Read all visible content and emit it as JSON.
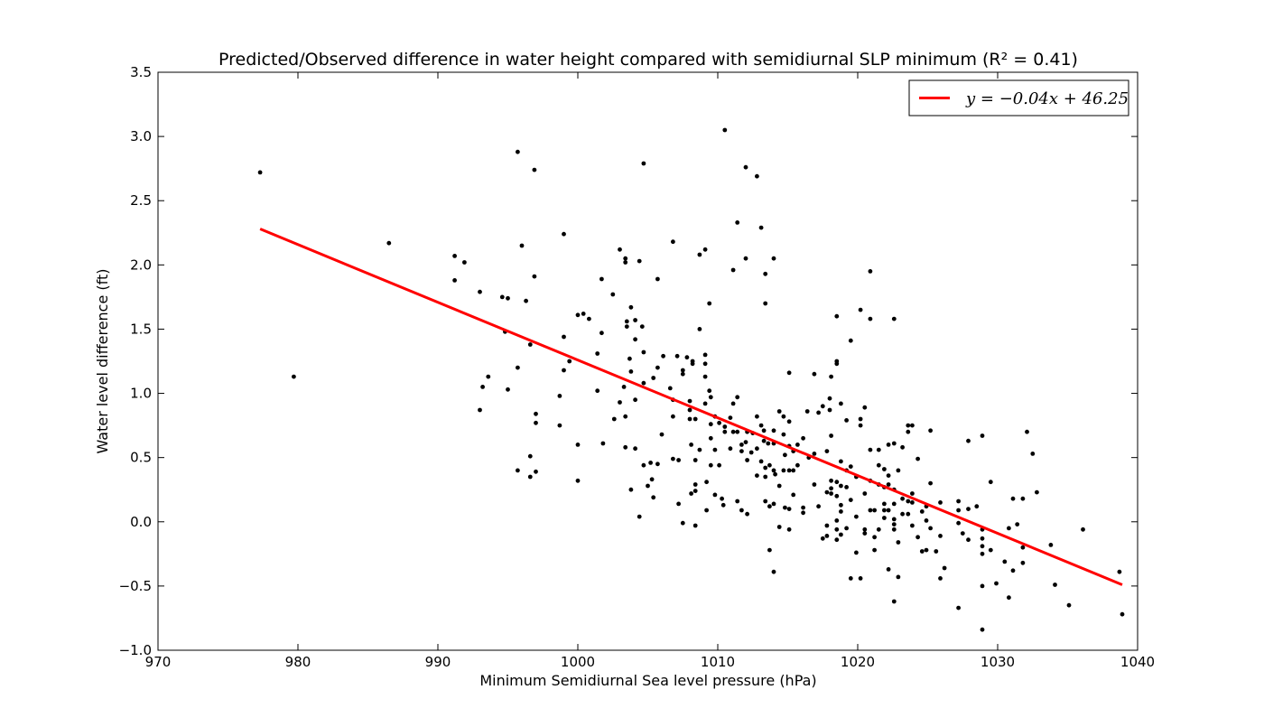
{
  "chart_data": {
    "type": "scatter",
    "title": "Predicted/Observed difference in water height compared with semidiurnal SLP minimum (R² = 0.41)",
    "xlabel": "Minimum Semidiurnal Sea level pressure (hPa)",
    "ylabel": "Water level difference (ft)",
    "xlim": [
      970,
      1040
    ],
    "ylim": [
      -1.0,
      3.5
    ],
    "xticks": [
      970,
      980,
      990,
      1000,
      1010,
      1020,
      1030,
      1040
    ],
    "yticks": [
      -1.0,
      -0.5,
      0.0,
      0.5,
      1.0,
      1.5,
      2.0,
      2.5,
      3.0,
      3.5
    ],
    "xtick_labels": [
      "970",
      "980",
      "990",
      "1000",
      "1010",
      "1020",
      "1030",
      "1040"
    ],
    "ytick_labels": [
      "−1.0",
      "−0.5",
      "0.0",
      "0.5",
      "1.0",
      "1.5",
      "2.0",
      "2.5",
      "3.0",
      "3.5"
    ],
    "grid": false,
    "legend_placement": "top-right",
    "points_color": "#000000",
    "fit_color": "#ff0000",
    "fit_line": {
      "label": "y = −0.04x + 46.25",
      "x": [
        977.3,
        1038.9
      ],
      "y": [
        2.28,
        -0.49
      ]
    },
    "points": [
      [
        977.3,
        2.72
      ],
      [
        979.7,
        1.13
      ],
      [
        986.5,
        2.17
      ],
      [
        991.2,
        2.07
      ],
      [
        991.2,
        1.88
      ],
      [
        991.9,
        2.02
      ],
      [
        993.0,
        1.79
      ],
      [
        993.0,
        0.87
      ],
      [
        993.2,
        1.05
      ],
      [
        993.6,
        1.13
      ],
      [
        994.6,
        1.75
      ],
      [
        994.8,
        1.48
      ],
      [
        995.0,
        1.74
      ],
      [
        995.0,
        1.03
      ],
      [
        995.7,
        0.4
      ],
      [
        995.7,
        1.2
      ],
      [
        995.7,
        2.88
      ],
      [
        996.0,
        2.15
      ],
      [
        996.3,
        1.72
      ],
      [
        996.6,
        1.38
      ],
      [
        996.6,
        0.51
      ],
      [
        996.6,
        0.35
      ],
      [
        996.9,
        2.74
      ],
      [
        996.9,
        1.91
      ],
      [
        997.0,
        0.84
      ],
      [
        997.0,
        0.77
      ],
      [
        997.0,
        0.39
      ],
      [
        998.7,
        0.98
      ],
      [
        998.7,
        0.75
      ],
      [
        999.0,
        2.24
      ],
      [
        999.0,
        1.44
      ],
      [
        999.0,
        1.18
      ],
      [
        999.4,
        1.25
      ],
      [
        1000.0,
        1.61
      ],
      [
        1000.0,
        0.6
      ],
      [
        1000.0,
        0.32
      ],
      [
        1000.4,
        1.62
      ],
      [
        1000.8,
        1.58
      ],
      [
        1001.4,
        1.31
      ],
      [
        1001.4,
        1.02
      ],
      [
        1001.7,
        1.89
      ],
      [
        1001.7,
        1.47
      ],
      [
        1001.8,
        0.61
      ],
      [
        1002.5,
        1.77
      ],
      [
        1002.6,
        0.8
      ],
      [
        1003.0,
        2.12
      ],
      [
        1003.0,
        0.93
      ],
      [
        1003.3,
        1.05
      ],
      [
        1003.4,
        2.05
      ],
      [
        1003.4,
        2.02
      ],
      [
        1003.4,
        0.82
      ],
      [
        1003.4,
        0.58
      ],
      [
        1003.5,
        1.56
      ],
      [
        1003.5,
        1.52
      ],
      [
        1003.7,
        1.27
      ],
      [
        1003.8,
        1.67
      ],
      [
        1003.8,
        1.17
      ],
      [
        1003.8,
        0.25
      ],
      [
        1004.1,
        1.57
      ],
      [
        1004.1,
        1.42
      ],
      [
        1004.1,
        0.95
      ],
      [
        1004.1,
        0.57
      ],
      [
        1004.4,
        2.03
      ],
      [
        1004.4,
        0.04
      ],
      [
        1004.6,
        1.52
      ],
      [
        1004.7,
        2.79
      ],
      [
        1004.7,
        1.32
      ],
      [
        1004.7,
        1.08
      ],
      [
        1004.7,
        0.44
      ],
      [
        1005.0,
        0.28
      ],
      [
        1005.2,
        0.46
      ],
      [
        1005.3,
        0.33
      ],
      [
        1005.4,
        1.12
      ],
      [
        1005.4,
        0.19
      ],
      [
        1005.7,
        1.89
      ],
      [
        1005.7,
        1.2
      ],
      [
        1005.7,
        0.45
      ],
      [
        1006.0,
        0.68
      ],
      [
        1006.1,
        1.29
      ],
      [
        1006.6,
        1.04
      ],
      [
        1006.8,
        2.18
      ],
      [
        1006.8,
        0.95
      ],
      [
        1006.8,
        0.82
      ],
      [
        1006.8,
        0.49
      ],
      [
        1007.1,
        1.29
      ],
      [
        1007.2,
        0.48
      ],
      [
        1007.2,
        0.14
      ],
      [
        1007.5,
        1.18
      ],
      [
        1007.5,
        1.15
      ],
      [
        1007.5,
        -0.01
      ],
      [
        1007.8,
        1.28
      ],
      [
        1008.0,
        0.94
      ],
      [
        1008.0,
        0.87
      ],
      [
        1008.0,
        0.8
      ],
      [
        1008.1,
        0.6
      ],
      [
        1008.1,
        0.22
      ],
      [
        1008.2,
        1.25
      ],
      [
        1008.2,
        1.23
      ],
      [
        1008.4,
        0.8
      ],
      [
        1008.4,
        0.48
      ],
      [
        1008.4,
        0.29
      ],
      [
        1008.4,
        0.24
      ],
      [
        1008.4,
        -0.03
      ],
      [
        1008.7,
        2.08
      ],
      [
        1008.7,
        1.5
      ],
      [
        1008.7,
        0.56
      ],
      [
        1009.1,
        2.12
      ],
      [
        1009.1,
        1.3
      ],
      [
        1009.1,
        1.23
      ],
      [
        1009.1,
        1.13
      ],
      [
        1009.1,
        0.92
      ],
      [
        1009.2,
        0.31
      ],
      [
        1009.2,
        0.09
      ],
      [
        1009.4,
        1.7
      ],
      [
        1009.4,
        1.02
      ],
      [
        1009.5,
        0.97
      ],
      [
        1009.5,
        0.76
      ],
      [
        1009.5,
        0.65
      ],
      [
        1009.5,
        0.44
      ],
      [
        1009.8,
        0.82
      ],
      [
        1009.8,
        0.56
      ],
      [
        1009.8,
        0.21
      ],
      [
        1010.1,
        0.77
      ],
      [
        1010.1,
        0.44
      ],
      [
        1010.3,
        0.18
      ],
      [
        1010.4,
        0.13
      ],
      [
        1010.5,
        3.05
      ],
      [
        1010.5,
        0.74
      ],
      [
        1010.5,
        0.7
      ],
      [
        1010.9,
        0.81
      ],
      [
        1010.9,
        0.57
      ],
      [
        1011.1,
        1.96
      ],
      [
        1011.1,
        0.92
      ],
      [
        1011.1,
        0.7
      ],
      [
        1011.4,
        2.33
      ],
      [
        1011.4,
        0.97
      ],
      [
        1011.4,
        0.7
      ],
      [
        1011.4,
        0.16
      ],
      [
        1011.7,
        0.6
      ],
      [
        1011.7,
        0.55
      ],
      [
        1011.7,
        0.09
      ],
      [
        1012.0,
        2.76
      ],
      [
        1012.0,
        2.05
      ],
      [
        1012.0,
        0.62
      ],
      [
        1012.1,
        0.7
      ],
      [
        1012.1,
        0.48
      ],
      [
        1012.1,
        0.06
      ],
      [
        1012.4,
        0.54
      ],
      [
        1012.5,
        0.69
      ],
      [
        1012.8,
        2.69
      ],
      [
        1012.8,
        0.82
      ],
      [
        1012.8,
        0.57
      ],
      [
        1012.8,
        0.36
      ],
      [
        1013.1,
        2.29
      ],
      [
        1013.1,
        0.75
      ],
      [
        1013.1,
        0.47
      ],
      [
        1013.3,
        0.71
      ],
      [
        1013.3,
        0.63
      ],
      [
        1013.4,
        1.93
      ],
      [
        1013.4,
        1.7
      ],
      [
        1013.4,
        0.42
      ],
      [
        1013.4,
        0.35
      ],
      [
        1013.4,
        0.16
      ],
      [
        1013.6,
        0.61
      ],
      [
        1013.7,
        0.44
      ],
      [
        1013.7,
        0.12
      ],
      [
        1013.7,
        -0.22
      ],
      [
        1014.0,
        2.05
      ],
      [
        1014.0,
        0.71
      ],
      [
        1014.0,
        0.61
      ],
      [
        1014.0,
        0.4
      ],
      [
        1014.0,
        0.14
      ],
      [
        1014.0,
        -0.39
      ],
      [
        1014.1,
        0.37
      ],
      [
        1014.4,
        0.86
      ],
      [
        1014.4,
        0.28
      ],
      [
        1014.4,
        -0.04
      ],
      [
        1014.7,
        0.82
      ],
      [
        1014.7,
        0.68
      ],
      [
        1014.7,
        0.4
      ],
      [
        1014.8,
        0.52
      ],
      [
        1014.8,
        0.11
      ],
      [
        1015.1,
        1.16
      ],
      [
        1015.1,
        0.78
      ],
      [
        1015.1,
        0.59
      ],
      [
        1015.1,
        0.4
      ],
      [
        1015.1,
        0.1
      ],
      [
        1015.1,
        -0.06
      ],
      [
        1015.4,
        0.55
      ],
      [
        1015.4,
        0.4
      ],
      [
        1015.4,
        0.21
      ],
      [
        1015.7,
        0.6
      ],
      [
        1015.7,
        0.44
      ],
      [
        1016.1,
        0.65
      ],
      [
        1016.1,
        0.11
      ],
      [
        1016.1,
        0.07
      ],
      [
        1016.4,
        0.86
      ],
      [
        1016.5,
        0.5
      ],
      [
        1016.9,
        1.15
      ],
      [
        1016.9,
        0.53
      ],
      [
        1016.9,
        0.29
      ],
      [
        1017.2,
        0.85
      ],
      [
        1017.2,
        0.12
      ],
      [
        1017.5,
        0.9
      ],
      [
        1017.5,
        -0.13
      ],
      [
        1017.8,
        0.55
      ],
      [
        1017.8,
        0.23
      ],
      [
        1017.8,
        -0.03
      ],
      [
        1017.8,
        -0.11
      ],
      [
        1018.0,
        0.96
      ],
      [
        1018.0,
        0.87
      ],
      [
        1018.1,
        1.13
      ],
      [
        1018.1,
        0.67
      ],
      [
        1018.1,
        0.32
      ],
      [
        1018.1,
        0.26
      ],
      [
        1018.1,
        0.22
      ],
      [
        1018.5,
        1.6
      ],
      [
        1018.5,
        1.25
      ],
      [
        1018.5,
        1.23
      ],
      [
        1018.5,
        0.31
      ],
      [
        1018.5,
        0.2
      ],
      [
        1018.5,
        0.01
      ],
      [
        1018.5,
        -0.06
      ],
      [
        1018.5,
        -0.14
      ],
      [
        1018.8,
        0.92
      ],
      [
        1018.8,
        0.47
      ],
      [
        1018.8,
        0.28
      ],
      [
        1018.8,
        0.13
      ],
      [
        1018.8,
        0.08
      ],
      [
        1018.8,
        -0.1
      ],
      [
        1019.2,
        0.79
      ],
      [
        1019.2,
        0.4
      ],
      [
        1019.2,
        0.27
      ],
      [
        1019.2,
        -0.05
      ],
      [
        1019.5,
        1.41
      ],
      [
        1019.5,
        0.43
      ],
      [
        1019.5,
        0.17
      ],
      [
        1019.5,
        -0.44
      ],
      [
        1019.9,
        0.35
      ],
      [
        1019.9,
        0.04
      ],
      [
        1019.9,
        -0.24
      ],
      [
        1020.2,
        1.65
      ],
      [
        1020.2,
        0.8
      ],
      [
        1020.2,
        0.75
      ],
      [
        1020.2,
        -0.44
      ],
      [
        1020.5,
        0.89
      ],
      [
        1020.5,
        0.22
      ],
      [
        1020.5,
        -0.06
      ],
      [
        1020.5,
        -0.09
      ],
      [
        1020.9,
        1.95
      ],
      [
        1020.9,
        1.58
      ],
      [
        1020.9,
        0.56
      ],
      [
        1020.9,
        0.32
      ],
      [
        1020.9,
        0.09
      ],
      [
        1021.2,
        0.09
      ],
      [
        1021.2,
        -0.12
      ],
      [
        1021.2,
        -0.22
      ],
      [
        1021.5,
        0.56
      ],
      [
        1021.5,
        0.44
      ],
      [
        1021.5,
        0.29
      ],
      [
        1021.5,
        -0.06
      ],
      [
        1021.9,
        0.41
      ],
      [
        1021.9,
        0.27
      ],
      [
        1021.9,
        0.14
      ],
      [
        1021.9,
        0.09
      ],
      [
        1021.9,
        0.03
      ],
      [
        1022.2,
        0.6
      ],
      [
        1022.2,
        0.36
      ],
      [
        1022.2,
        0.29
      ],
      [
        1022.2,
        0.09
      ],
      [
        1022.2,
        -0.37
      ],
      [
        1022.6,
        1.58
      ],
      [
        1022.6,
        0.61
      ],
      [
        1022.6,
        0.25
      ],
      [
        1022.6,
        0.14
      ],
      [
        1022.6,
        0.02
      ],
      [
        1022.6,
        -0.02
      ],
      [
        1022.6,
        -0.06
      ],
      [
        1022.6,
        -0.62
      ],
      [
        1022.9,
        0.4
      ],
      [
        1022.9,
        -0.16
      ],
      [
        1022.9,
        -0.43
      ],
      [
        1023.2,
        0.58
      ],
      [
        1023.2,
        0.18
      ],
      [
        1023.2,
        0.06
      ],
      [
        1023.6,
        0.75
      ],
      [
        1023.6,
        0.7
      ],
      [
        1023.6,
        0.16
      ],
      [
        1023.6,
        0.06
      ],
      [
        1023.9,
        0.75
      ],
      [
        1023.9,
        0.22
      ],
      [
        1023.9,
        0.15
      ],
      [
        1023.9,
        -0.03
      ],
      [
        1024.3,
        0.49
      ],
      [
        1024.3,
        -0.12
      ],
      [
        1024.6,
        0.08
      ],
      [
        1024.6,
        -0.23
      ],
      [
        1024.9,
        0.12
      ],
      [
        1024.9,
        0.01
      ],
      [
        1024.9,
        -0.22
      ],
      [
        1025.2,
        0.71
      ],
      [
        1025.2,
        0.3
      ],
      [
        1025.2,
        -0.05
      ],
      [
        1025.6,
        -0.23
      ],
      [
        1025.9,
        0.15
      ],
      [
        1025.9,
        -0.11
      ],
      [
        1025.9,
        -0.44
      ],
      [
        1026.2,
        -0.36
      ],
      [
        1027.2,
        0.16
      ],
      [
        1027.2,
        0.09
      ],
      [
        1027.2,
        -0.01
      ],
      [
        1027.2,
        -0.67
      ],
      [
        1027.5,
        -0.09
      ],
      [
        1027.9,
        0.63
      ],
      [
        1027.9,
        0.1
      ],
      [
        1027.9,
        -0.14
      ],
      [
        1028.5,
        0.12
      ],
      [
        1028.9,
        0.67
      ],
      [
        1028.9,
        -0.06
      ],
      [
        1028.9,
        -0.13
      ],
      [
        1028.9,
        -0.19
      ],
      [
        1028.9,
        -0.25
      ],
      [
        1028.9,
        -0.5
      ],
      [
        1028.9,
        -0.84
      ],
      [
        1029.5,
        0.31
      ],
      [
        1029.5,
        -0.22
      ],
      [
        1029.9,
        -0.48
      ],
      [
        1030.5,
        -0.31
      ],
      [
        1030.8,
        -0.05
      ],
      [
        1030.8,
        -0.59
      ],
      [
        1031.1,
        0.18
      ],
      [
        1031.1,
        -0.38
      ],
      [
        1031.4,
        -0.02
      ],
      [
        1031.8,
        0.18
      ],
      [
        1031.8,
        -0.32
      ],
      [
        1031.8,
        -0.2
      ],
      [
        1032.1,
        0.7
      ],
      [
        1032.5,
        0.53
      ],
      [
        1032.8,
        0.23
      ],
      [
        1033.8,
        -0.18
      ],
      [
        1034.1,
        -0.49
      ],
      [
        1035.1,
        -0.65
      ],
      [
        1036.1,
        -0.06
      ],
      [
        1038.7,
        -0.39
      ],
      [
        1038.9,
        -0.72
      ]
    ]
  }
}
